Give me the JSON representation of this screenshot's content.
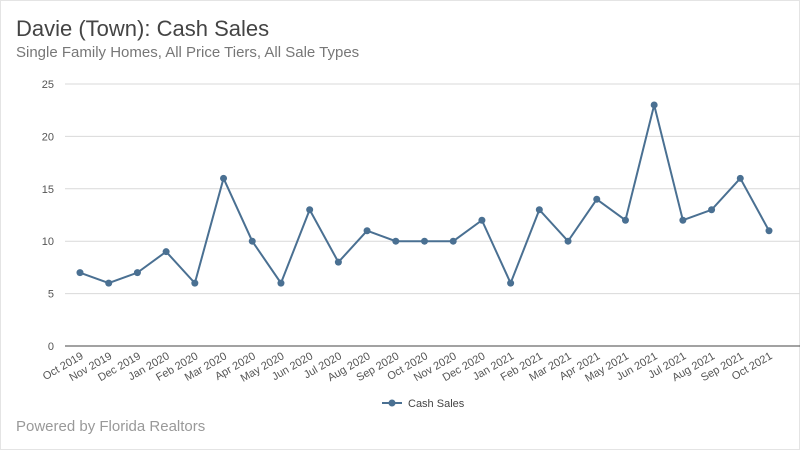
{
  "header": {
    "title": "Davie (Town): Cash Sales",
    "subtitle": "Single Family Homes, All Price Tiers, All Sale Types"
  },
  "footer": {
    "text": "Powered by Florida Realtors"
  },
  "chart_data": {
    "type": "line",
    "title": "Davie (Town): Cash Sales",
    "subtitle": "Single Family Homes, All Price Tiers, All Sale Types",
    "categories": [
      "Oct 2019",
      "Nov 2019",
      "Dec 2019",
      "Jan 2020",
      "Feb 2020",
      "Mar 2020",
      "Apr 2020",
      "May 2020",
      "Jun 2020",
      "Jul 2020",
      "Aug 2020",
      "Sep 2020",
      "Oct 2020",
      "Nov 2020",
      "Dec 2020",
      "Jan 2021",
      "Feb 2021",
      "Mar 2021",
      "Apr 2021",
      "May 2021",
      "Jun 2021",
      "Jul 2021",
      "Aug 2021",
      "Sep 2021",
      "Oct 2021"
    ],
    "series": [
      {
        "name": "Cash Sales",
        "color": "#4a7092",
        "values": [
          7,
          6,
          7,
          9,
          6,
          16,
          10,
          6,
          13,
          8,
          11,
          10,
          10,
          10,
          12,
          6,
          13,
          10,
          14,
          12,
          23,
          12,
          13,
          16,
          11
        ]
      }
    ],
    "ylim": [
      0,
      25
    ],
    "yticks": [
      0,
      5,
      10,
      15,
      20,
      25
    ],
    "grid": true,
    "legend": "bottom-center",
    "xlabel": "",
    "ylabel": ""
  }
}
